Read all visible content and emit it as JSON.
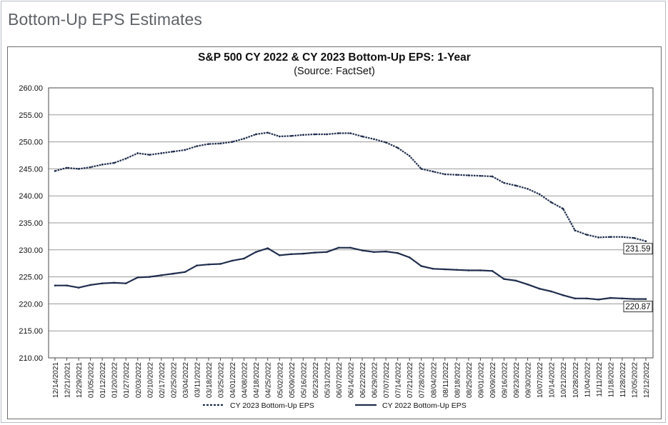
{
  "page": {
    "heading": "Bottom-Up EPS Estimates"
  },
  "colors": {
    "series": "#1f2d4d",
    "grid": "#9a9a9a",
    "axis": "#4a4a4a",
    "text": "#111111"
  },
  "chart_data": {
    "type": "line",
    "title": "S&P 500 CY 2022 & CY 2023 Bottom-Up  EPS: 1-Year",
    "subtitle": "(Source: FactSet)",
    "xlabel": "",
    "ylabel": "",
    "ylim": [
      210,
      260
    ],
    "yticks": [
      "260.00",
      "255.00",
      "250.00",
      "245.00",
      "240.00",
      "235.00",
      "230.00",
      "225.00",
      "220.00",
      "215.00",
      "210.00"
    ],
    "x": [
      "12/14/2021",
      "12/21/2021",
      "12/29/2021",
      "01/05/2022",
      "01/12/2022",
      "01/20/2022",
      "01/27/2022",
      "02/03/2022",
      "02/10/2022",
      "02/17/2022",
      "02/25/2022",
      "03/04/2022",
      "03/11/2022",
      "03/18/2022",
      "03/25/2022",
      "04/01/2022",
      "04/08/2022",
      "04/18/2022",
      "04/25/2022",
      "05/02/2022",
      "05/09/2022",
      "05/16/2022",
      "05/23/2022",
      "05/31/2022",
      "06/07/2022",
      "06/14/2022",
      "06/22/2022",
      "06/29/2022",
      "07/07/2022",
      "07/14/2022",
      "07/21/2022",
      "07/28/2022",
      "08/04/2022",
      "08/11/2022",
      "08/18/2022",
      "08/25/2022",
      "09/01/2022",
      "09/09/2022",
      "09/16/2022",
      "09/23/2022",
      "09/30/2022",
      "10/07/2022",
      "10/14/2022",
      "10/21/2022",
      "10/28/2022",
      "11/04/2022",
      "11/11/2022",
      "11/18/2022",
      "11/28/2022",
      "12/05/2022",
      "12/12/2022"
    ],
    "grid": true,
    "legend_position": "bottom-center",
    "series": [
      {
        "name": "CY 2023 Bottom-Up EPS",
        "style": "dashed",
        "end_label": "231.59",
        "values": [
          244.6,
          245.2,
          245.0,
          245.3,
          245.8,
          246.1,
          246.9,
          247.9,
          247.6,
          247.9,
          248.2,
          248.5,
          249.2,
          249.6,
          249.7,
          250.0,
          250.6,
          251.4,
          251.7,
          251.0,
          251.1,
          251.3,
          251.4,
          251.4,
          251.6,
          251.6,
          251.0,
          250.5,
          249.9,
          248.9,
          247.4,
          245.0,
          244.5,
          244.0,
          243.9,
          243.8,
          243.7,
          243.6,
          242.4,
          241.9,
          241.3,
          240.3,
          238.8,
          237.6,
          233.6,
          232.8,
          232.3,
          232.4,
          232.4,
          232.2,
          231.6
        ]
      },
      {
        "name": "CY 2022 Bottom-Up EPS",
        "style": "solid",
        "end_label": "220.87",
        "values": [
          223.4,
          223.4,
          223.0,
          223.5,
          223.8,
          223.9,
          223.8,
          224.9,
          225.0,
          225.3,
          225.6,
          225.9,
          227.1,
          227.3,
          227.4,
          228.0,
          228.4,
          229.6,
          230.3,
          229.0,
          229.2,
          229.3,
          229.5,
          229.6,
          230.4,
          230.4,
          229.9,
          229.6,
          229.7,
          229.4,
          228.6,
          227.0,
          226.5,
          226.4,
          226.3,
          226.2,
          226.2,
          226.1,
          224.6,
          224.3,
          223.6,
          222.8,
          222.3,
          221.6,
          221.0,
          221.0,
          220.8,
          221.1,
          221.0,
          220.9,
          220.9
        ]
      }
    ]
  }
}
